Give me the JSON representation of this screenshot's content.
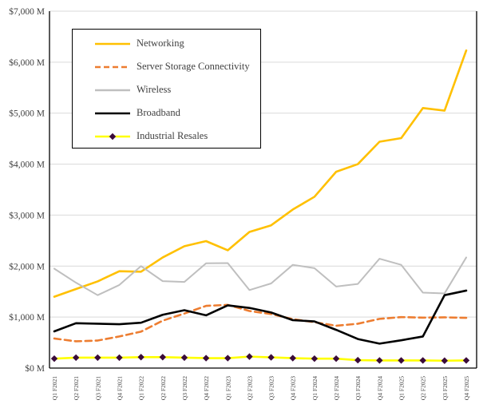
{
  "chart_data": {
    "type": "line",
    "title": "",
    "xlabel": "",
    "ylabel": "",
    "grid": true,
    "legend_position": "top-left-inside",
    "x_categories": [
      "Q1 F2021",
      "Q2 F2021",
      "Q3 F2021",
      "Q4 F2021",
      "Q1 F2022",
      "Q2 F2022",
      "Q3 F2022",
      "Q4 F2022",
      "Q1 F2023",
      "Q2 F2023",
      "Q3 F2023",
      "Q4 F2023",
      "Q1 F2024",
      "Q2 F2024",
      "Q3 F2024",
      "Q4 F2024",
      "Q1 F2025",
      "Q2 F2025",
      "Q3 F2025",
      "Q4 F2025"
    ],
    "y_axis": {
      "min": 0,
      "max": 7000,
      "step": 1000,
      "tick_labels": [
        "$0 M",
        "$1,000 M",
        "$2,000 M",
        "$3,000 M",
        "$4,000 M",
        "$5,000 M",
        "$6,000 M",
        "$7,000 M"
      ]
    },
    "colors": {
      "gridline": "#d9d9d9",
      "axis_line": "#000000",
      "tick_text": "#404040",
      "legend_text": "#404040",
      "background": "#ffffff"
    },
    "series": [
      {
        "name": "Networking",
        "color": "#FFC000",
        "style": "solid",
        "values": [
          1400,
          1550,
          1700,
          1900,
          1890,
          2170,
          2390,
          2490,
          2310,
          2670,
          2800,
          3110,
          3360,
          3850,
          4000,
          4440,
          4510,
          5100,
          5050,
          6230
        ]
      },
      {
        "name": "Server Storage Connectivity",
        "color": "#ED7D31",
        "style": "dashed",
        "values": [
          580,
          525,
          540,
          620,
          715,
          930,
          1070,
          1220,
          1240,
          1120,
          1060,
          960,
          900,
          830,
          870,
          965,
          1000,
          990,
          995,
          985
        ]
      },
      {
        "name": "Wireless",
        "color": "#BFBFBF",
        "style": "solid",
        "values": [
          1950,
          1675,
          1430,
          1630,
          2000,
          1705,
          1690,
          2055,
          2060,
          1530,
          1660,
          2025,
          1960,
          1600,
          1650,
          2145,
          2025,
          1480,
          1465,
          2170
        ]
      },
      {
        "name": "Broadband",
        "color": "#000000",
        "style": "solid",
        "values": [
          720,
          880,
          870,
          860,
          890,
          1045,
          1135,
          1035,
          1230,
          1180,
          1090,
          940,
          915,
          750,
          570,
          480,
          545,
          620,
          1430,
          1520
        ]
      },
      {
        "name": "Industrial Resales",
        "color": "#FFFF00",
        "style": "solid",
        "marker": "diamond",
        "marker_color": "#3A0B3A",
        "values": [
          185,
          205,
          205,
          205,
          215,
          215,
          205,
          195,
          195,
          225,
          210,
          195,
          185,
          185,
          155,
          150,
          150,
          150,
          145,
          150
        ]
      }
    ]
  }
}
